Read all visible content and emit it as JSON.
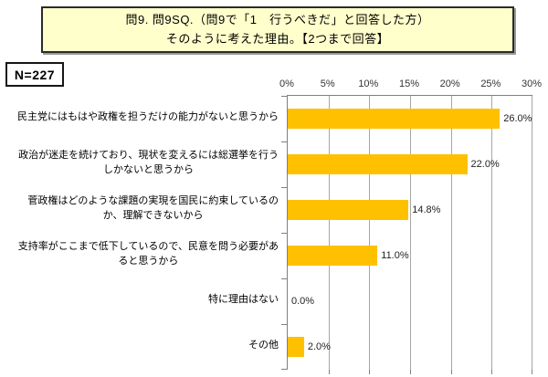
{
  "title": {
    "text": "問9. 問9SQ.（問9で「1　行うべきだ」と回答した方）\nそのように考えた理由。【2つまで回答】"
  },
  "sample_size": {
    "label": "N=227"
  },
  "chart_data": {
    "type": "bar",
    "orientation": "horizontal",
    "title": "問9. 問9SQ.（問9で「1　行うべきだ」と回答した方）そのように考えた理由。【2つまで回答】",
    "categories": [
      "民主党にはもはや政権を担うだけの能力がないと思うから",
      "政治が迷走を続けており、現状を変えるには総選挙を行う\nしかないと思うから",
      "菅政権はどのような課題の実現を国民に約束しているの\nか、理解できないから",
      "支持率がここまで低下しているので、民意を問う必要があ\nると思うから",
      "特に理由はない",
      "その他"
    ],
    "values": [
      26.0,
      22.0,
      14.8,
      11.0,
      0.0,
      2.0
    ],
    "value_labels": [
      "26.0%",
      "22.0%",
      "14.8%",
      "11.0%",
      "0.0%",
      "2.0%"
    ],
    "x_ticks": [
      "0%",
      "5%",
      "10%",
      "15%",
      "20%",
      "25%",
      "30%"
    ],
    "xlim": [
      0,
      30
    ],
    "grid": true,
    "legend": "none",
    "bar_color": "#FFC000"
  },
  "colors": {
    "title_background": "#FFFFCC",
    "bar": "#FFC000",
    "gridline": "#A6A6A6",
    "axis": "#808080",
    "text": "#000000"
  }
}
